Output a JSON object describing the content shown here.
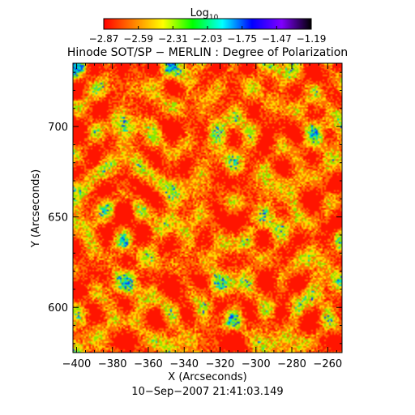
{
  "chart_data": {
    "type": "heatmap",
    "title": "Hinode SOT/SP − MERLIN : Degree of Polarization",
    "xlabel": "X (Arcseconds)",
    "ylabel": "Y (Arcseconds)",
    "footer": "10−Sep−2007 21:41:03.149",
    "xlim": [
      -402,
      -252
    ],
    "ylim": [
      575,
      735
    ],
    "x_ticks": [
      -400,
      -380,
      -360,
      -340,
      -320,
      -300,
      -280,
      -260
    ],
    "x_tick_labels": [
      "−400",
      "−380",
      "−360",
      "−340",
      "−320",
      "−300",
      "−280",
      "−260"
    ],
    "y_ticks": [
      600,
      650,
      700
    ],
    "y_tick_labels": [
      "600",
      "650",
      "700"
    ],
    "colorbar": {
      "label_base": "Log",
      "label_sub": "10",
      "range": [
        -2.87,
        -1.19
      ],
      "ticks": [
        -2.87,
        -2.59,
        -2.31,
        -2.03,
        -1.75,
        -1.47,
        -1.19
      ],
      "tick_labels": [
        "−2.87",
        "−2.59",
        "−2.31",
        "−2.03",
        "−1.75",
        "−1.47",
        "−1.19"
      ],
      "colormap": [
        "#ff0000",
        "#ff8000",
        "#ffff00",
        "#00ff00",
        "#00ffff",
        "#0000ff",
        "#8000ff",
        "#000000"
      ]
    },
    "map_palette": {
      "red": "#ff1500",
      "orange": "#ff7000",
      "yellow": "#ffd800",
      "green": "#8ae800",
      "cyan": "#00d8c0",
      "blue": "#0040ff"
    }
  }
}
